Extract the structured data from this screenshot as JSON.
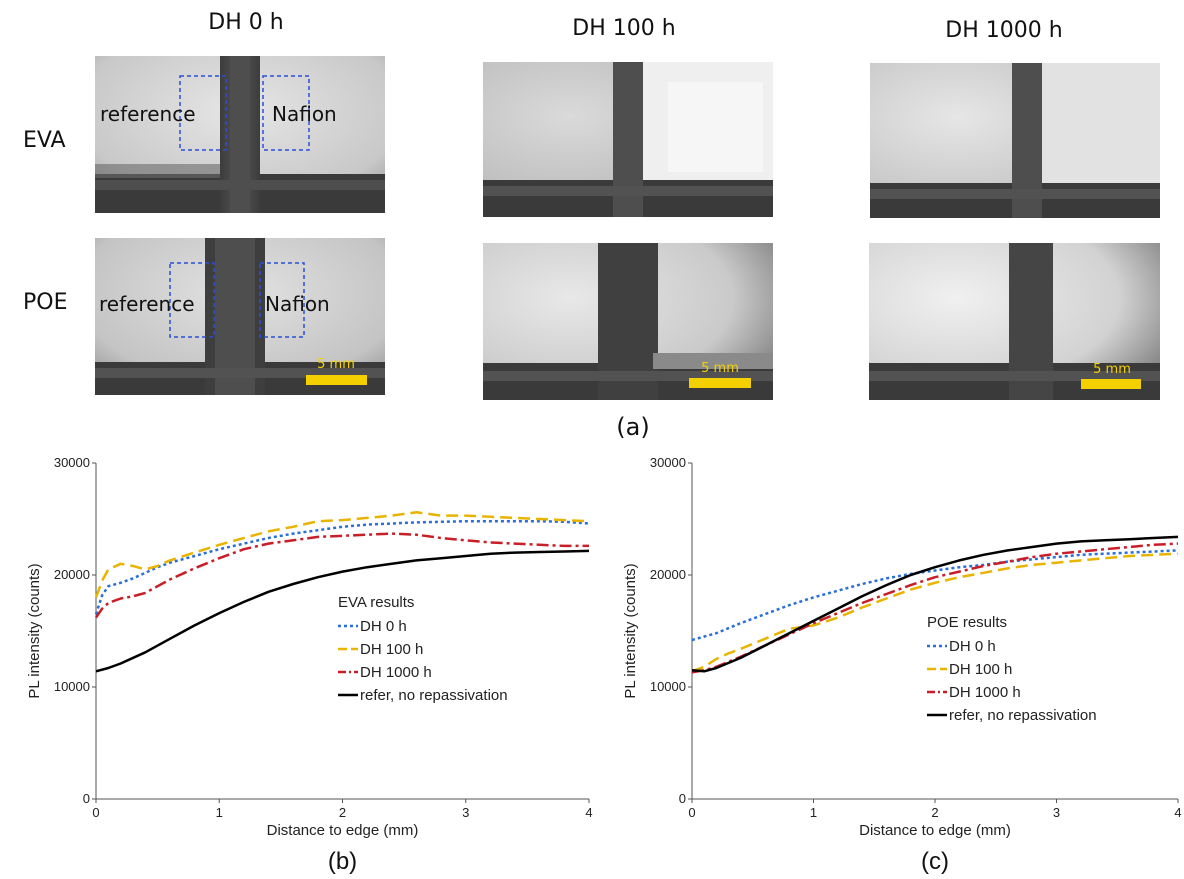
{
  "images": {
    "columns": [
      "DH 0 h",
      "DH 100 h",
      "DH 1000 h"
    ],
    "rows": [
      "EVA",
      "POE"
    ],
    "region_labels": {
      "reference": "reference",
      "nafion": "Nafion"
    },
    "scale_bar": "5 mm",
    "label": "(a)"
  },
  "colors": {
    "dh0": "#2a6fd6",
    "dh100": "#e8b400",
    "dh1000": "#c81e28",
    "refer": "#000000",
    "scale_bar": "#f5d000",
    "box": "#2b4fd8"
  },
  "chart_data": [
    {
      "type": "line",
      "label": "(b)",
      "xlabel": "Distance to edge (mm)",
      "ylabel": "PL intensity (counts)",
      "xlim": [
        0,
        4
      ],
      "ylim": [
        0,
        30000
      ],
      "xticks": [
        0,
        1,
        2,
        3,
        4
      ],
      "yticks": [
        0,
        10000,
        20000,
        30000
      ],
      "legend_title": "EVA results",
      "legend_position": "center-right",
      "series": [
        {
          "name": "DH 0 h",
          "style": "dotted",
          "color": "#2a6fd6",
          "x": [
            0,
            0.05,
            0.1,
            0.2,
            0.3,
            0.4,
            0.5,
            0.6,
            0.8,
            1.0,
            1.2,
            1.4,
            1.6,
            1.8,
            2.0,
            2.2,
            2.4,
            2.6,
            2.8,
            3.0,
            3.2,
            3.4,
            3.6,
            3.8,
            4.0
          ],
          "y": [
            16500,
            18200,
            19000,
            19300,
            19700,
            20200,
            20700,
            21100,
            21700,
            22300,
            22800,
            23300,
            23700,
            24000,
            24300,
            24500,
            24600,
            24700,
            24750,
            24800,
            24800,
            24800,
            24800,
            24750,
            24600
          ]
        },
        {
          "name": "DH 100 h",
          "style": "dashed",
          "color": "#e8b400",
          "x": [
            0,
            0.05,
            0.1,
            0.2,
            0.3,
            0.4,
            0.5,
            0.6,
            0.8,
            1.0,
            1.2,
            1.4,
            1.6,
            1.8,
            2.0,
            2.2,
            2.4,
            2.6,
            2.8,
            3.0,
            3.2,
            3.4,
            3.6,
            3.8,
            4.0
          ],
          "y": [
            18000,
            19500,
            20500,
            21000,
            20800,
            20500,
            20800,
            21300,
            22000,
            22700,
            23300,
            23900,
            24300,
            24800,
            24900,
            25100,
            25300,
            25600,
            25300,
            25300,
            25200,
            25100,
            25000,
            24900,
            24800
          ]
        },
        {
          "name": "DH 1000 h",
          "style": "dashdot",
          "color": "#c81e28",
          "x": [
            0,
            0.05,
            0.1,
            0.2,
            0.3,
            0.4,
            0.5,
            0.6,
            0.8,
            1.0,
            1.2,
            1.4,
            1.6,
            1.8,
            2.0,
            2.2,
            2.4,
            2.6,
            2.8,
            3.0,
            3.2,
            3.4,
            3.6,
            3.8,
            4.0
          ],
          "y": [
            16200,
            17000,
            17500,
            17900,
            18100,
            18400,
            19000,
            19600,
            20600,
            21500,
            22300,
            22800,
            23100,
            23400,
            23500,
            23600,
            23700,
            23600,
            23300,
            23100,
            22900,
            22800,
            22700,
            22600,
            22600
          ]
        },
        {
          "name": "refer, no repassivation",
          "style": "solid",
          "color": "#000000",
          "x": [
            0,
            0.1,
            0.2,
            0.4,
            0.6,
            0.8,
            1.0,
            1.2,
            1.4,
            1.6,
            1.8,
            2.0,
            2.2,
            2.4,
            2.6,
            2.8,
            3.0,
            3.2,
            3.4,
            3.6,
            3.8,
            4.0
          ],
          "y": [
            11400,
            11700,
            12100,
            13100,
            14300,
            15500,
            16600,
            17600,
            18500,
            19200,
            19800,
            20300,
            20700,
            21000,
            21300,
            21500,
            21700,
            21900,
            22000,
            22050,
            22100,
            22150
          ]
        }
      ]
    },
    {
      "type": "line",
      "label": "(c)",
      "xlabel": "Distance to edge (mm)",
      "ylabel": "PL intensity (counts)",
      "xlim": [
        0,
        4
      ],
      "ylim": [
        0,
        30000
      ],
      "xticks": [
        0,
        1,
        2,
        3,
        4
      ],
      "yticks": [
        0,
        10000,
        20000,
        30000
      ],
      "legend_title": "POE results",
      "legend_position": "center-right",
      "series": [
        {
          "name": "DH 0 h",
          "style": "dotted",
          "color": "#2a6fd6",
          "x": [
            0,
            0.2,
            0.4,
            0.6,
            0.8,
            1.0,
            1.2,
            1.4,
            1.6,
            1.8,
            2.0,
            2.2,
            2.4,
            2.6,
            2.8,
            3.0,
            3.2,
            3.4,
            3.6,
            3.8,
            4.0
          ],
          "y": [
            14200,
            14800,
            15700,
            16500,
            17300,
            18000,
            18600,
            19200,
            19700,
            20100,
            20400,
            20700,
            20900,
            21200,
            21400,
            21600,
            21800,
            21900,
            22000,
            22100,
            22200
          ]
        },
        {
          "name": "DH 100 h",
          "style": "dashed",
          "color": "#e8b400",
          "x": [
            0,
            0.1,
            0.2,
            0.3,
            0.4,
            0.6,
            0.8,
            1.0,
            1.2,
            1.4,
            1.6,
            1.8,
            2.0,
            2.2,
            2.4,
            2.6,
            2.8,
            3.0,
            3.2,
            3.4,
            3.6,
            3.8,
            4.0
          ],
          "y": [
            11400,
            11800,
            12500,
            13000,
            13400,
            14300,
            15200,
            15500,
            16200,
            17100,
            17900,
            18700,
            19300,
            19800,
            20200,
            20600,
            20900,
            21100,
            21300,
            21500,
            21700,
            21800,
            21900
          ]
        },
        {
          "name": "DH 1000 h",
          "style": "dashdot",
          "color": "#c81e28",
          "x": [
            0,
            0.1,
            0.2,
            0.4,
            0.6,
            0.8,
            1.0,
            1.2,
            1.4,
            1.6,
            1.8,
            2.0,
            2.2,
            2.4,
            2.6,
            2.8,
            3.0,
            3.2,
            3.4,
            3.6,
            3.8,
            4.0
          ],
          "y": [
            11300,
            11500,
            11800,
            12700,
            13700,
            14700,
            15700,
            16600,
            17500,
            18300,
            19100,
            19800,
            20300,
            20800,
            21200,
            21600,
            21900,
            22100,
            22300,
            22500,
            22700,
            22800
          ]
        },
        {
          "name": "refer, no repassivation",
          "style": "solid",
          "color": "#000000",
          "x": [
            0,
            0.1,
            0.2,
            0.4,
            0.6,
            0.8,
            1.0,
            1.2,
            1.4,
            1.6,
            1.8,
            2.0,
            2.2,
            2.4,
            2.6,
            2.8,
            3.0,
            3.2,
            3.4,
            3.6,
            3.8,
            4.0
          ],
          "y": [
            11500,
            11400,
            11700,
            12600,
            13700,
            14800,
            15900,
            17000,
            18100,
            19100,
            20000,
            20700,
            21300,
            21800,
            22200,
            22500,
            22800,
            23000,
            23100,
            23200,
            23300,
            23400
          ]
        }
      ]
    }
  ]
}
